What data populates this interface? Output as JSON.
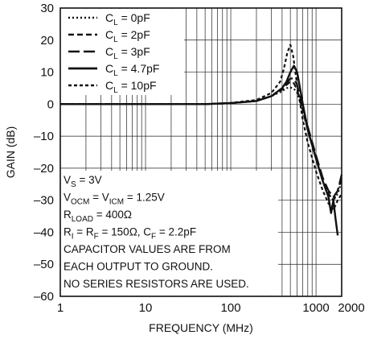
{
  "chart_data": {
    "type": "line",
    "xlabel": "FREQUENCY (MHz)",
    "ylabel": "GAIN (dB)",
    "x_scale": "log",
    "xlim": [
      1,
      2000
    ],
    "ylim": [
      -60,
      30
    ],
    "grid": true,
    "legend_position": "top-left",
    "x_ticks": [
      {
        "value": 1,
        "label": "1"
      },
      {
        "value": 10,
        "label": "10"
      },
      {
        "value": 100,
        "label": "100"
      },
      {
        "value": 1000,
        "label": "1000"
      },
      {
        "value": 2000,
        "label": "2000"
      }
    ],
    "y_ticks": [
      30,
      20,
      10,
      0,
      -10,
      -20,
      -30,
      -40,
      -50,
      -60
    ],
    "y_tick_labels": [
      "30",
      "20",
      "10",
      "0",
      "–10",
      "–20",
      "–30",
      "–40",
      "–50",
      "–60"
    ],
    "series": [
      {
        "name": "C_L = 0pF",
        "label_main": "C",
        "label_sub": "L",
        "label_rest": " = 0pF",
        "style": "dotted",
        "x": [
          1,
          10,
          50,
          100,
          200,
          300,
          400,
          450,
          500,
          550,
          600,
          700,
          800,
          1000,
          1200,
          1400,
          1600,
          1800,
          2000
        ],
        "y": [
          0,
          0,
          0,
          0.3,
          1,
          2.5,
          4,
          5,
          5.2,
          4.8,
          3.5,
          -2,
          -8,
          -17,
          -24,
          -28,
          -30,
          -28,
          -24
        ]
      },
      {
        "name": "C_L = 2pF",
        "label_main": "C",
        "label_sub": "L",
        "label_rest": " = 2pF",
        "style": "dashed",
        "x": [
          1,
          10,
          50,
          100,
          200,
          300,
          400,
          450,
          500,
          550,
          600,
          700,
          800,
          1000,
          1200,
          1400,
          1600,
          1800,
          2000
        ],
        "y": [
          0,
          0,
          0,
          0.3,
          1,
          2.5,
          4.5,
          6,
          7,
          6.5,
          4.5,
          -2,
          -8,
          -17,
          -24,
          -28,
          -30,
          -27,
          -23
        ]
      },
      {
        "name": "C_L = 3pF",
        "label_main": "C",
        "label_sub": "L",
        "label_rest": " = 3pF",
        "style": "longdash",
        "x": [
          1,
          10,
          50,
          100,
          200,
          300,
          400,
          450,
          500,
          550,
          600,
          700,
          800,
          1000,
          1200,
          1400,
          1600,
          1800,
          2000
        ],
        "y": [
          0,
          0,
          0,
          0.3,
          1,
          2.5,
          5,
          6.5,
          8,
          8,
          6,
          -1,
          -7,
          -16,
          -23,
          -27,
          -29,
          -27,
          -22
        ]
      },
      {
        "name": "C_L = 4.7pF",
        "label_main": "C",
        "label_sub": "L",
        "label_rest": " = 4.7pF",
        "style": "solid",
        "x": [
          1,
          10,
          50,
          100,
          200,
          300,
          400,
          450,
          500,
          550,
          600,
          650,
          700,
          800,
          1000,
          1200,
          1400,
          1500,
          1600,
          1700,
          1800
        ],
        "y": [
          0,
          0,
          0,
          0.3,
          1,
          2.5,
          5,
          7,
          10,
          12,
          10,
          5,
          0,
          -8,
          -17,
          -24,
          -29,
          -34,
          -30,
          -36,
          -41
        ]
      },
      {
        "name": "C_L = 10pF",
        "label_main": "C",
        "label_sub": "L",
        "label_rest": " = 10pF",
        "style": "shortdash",
        "x": [
          1,
          10,
          50,
          100,
          200,
          300,
          380,
          420,
          460,
          500,
          540,
          600,
          700,
          800,
          1000,
          1200,
          1400,
          1600,
          1800,
          2000
        ],
        "y": [
          0,
          0,
          0,
          0.4,
          1.3,
          3.5,
          7,
          11,
          16,
          18.5,
          15,
          6,
          -5,
          -12,
          -21,
          -27,
          -31,
          -33,
          -30,
          -28
        ]
      }
    ],
    "annotation_lines": [
      {
        "main": "V",
        "sub": "S",
        "rest": " = 3V"
      },
      {
        "main": "V",
        "sub": "OCM",
        "rest": " = V",
        "sub2": "ICM",
        "rest2": " = 1.25V"
      },
      {
        "main": "R",
        "sub": "LOAD",
        "rest": " = 400Ω"
      },
      {
        "main": "R",
        "sub": "I",
        "rest": " = R",
        "sub2": "F",
        "rest2": " = 150Ω, C",
        "sub3": "F",
        "rest3": " = 2.2pF"
      },
      {
        "main": "CAPACITOR VALUES ARE FROM"
      },
      {
        "main": "EACH OUTPUT TO GROUND."
      },
      {
        "main": "NO SERIES RESISTORS ARE USED."
      }
    ]
  }
}
